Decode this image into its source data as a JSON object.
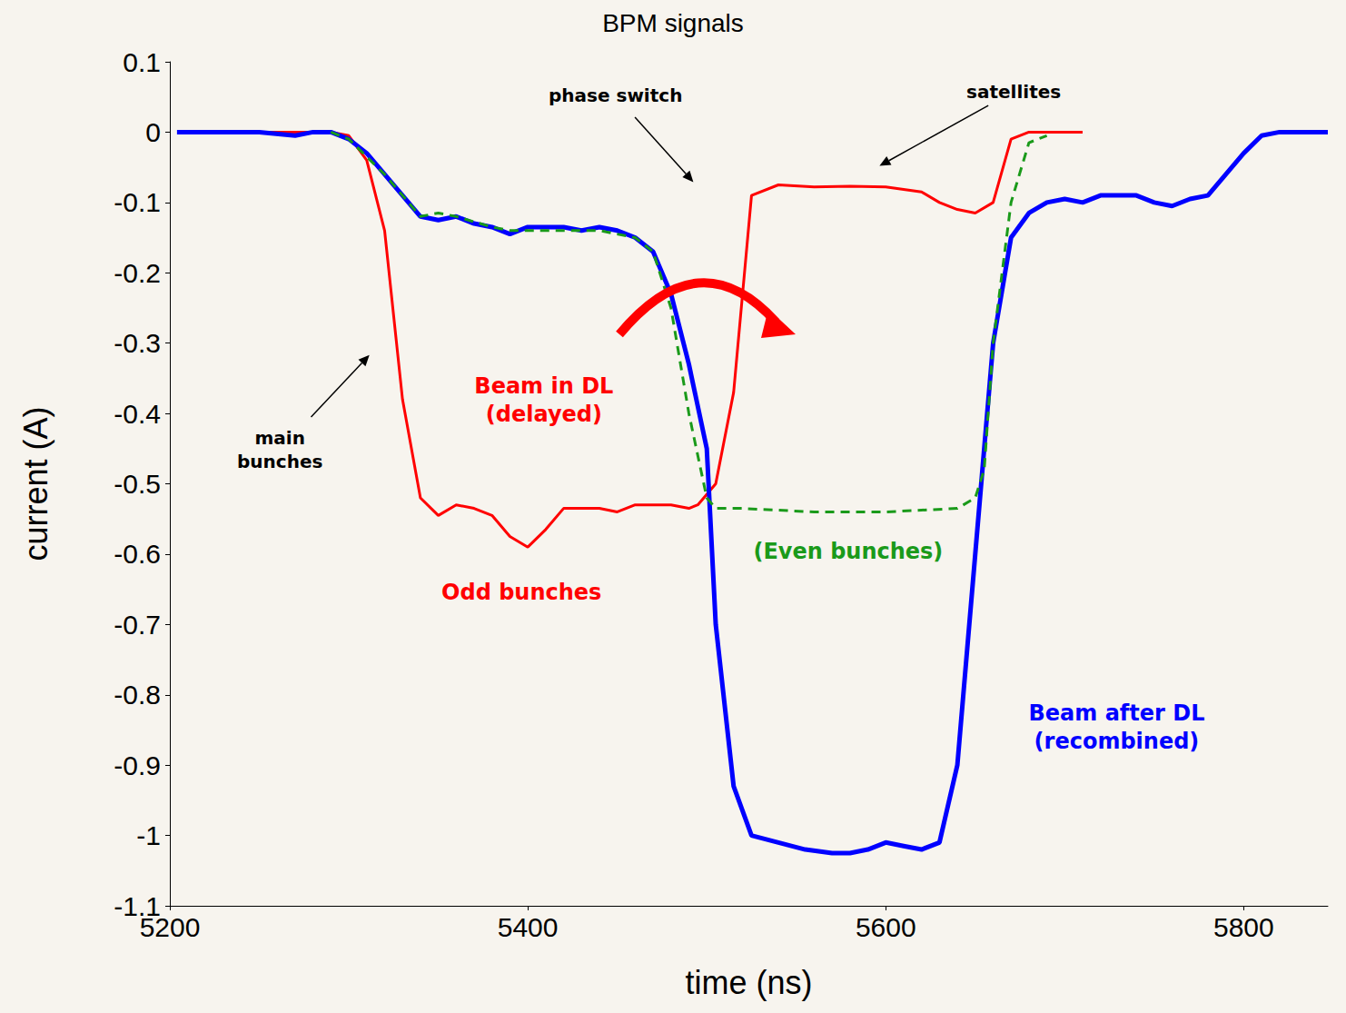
{
  "chart_data": {
    "type": "line",
    "title": "BPM signals",
    "x_label": "time (ns)",
    "y_label": "current (A)",
    "xlim": [
      5200,
      5847
    ],
    "xticks": [
      5200,
      5400,
      5600,
      5800
    ],
    "ylim": [
      -1.1,
      0.1
    ],
    "yticks": [
      -1.1,
      -1,
      -0.9,
      -0.8,
      -0.7,
      -0.6,
      -0.5,
      -0.4,
      -0.3,
      -0.2,
      -0.1,
      0,
      0.1
    ],
    "grid": false,
    "series": [
      {
        "color": "#ff0000",
        "line_style": "solid",
        "x": [
          5235,
          5260,
          5290,
          5300,
          5310,
          5320,
          5330,
          5340,
          5350,
          5360,
          5370,
          5380,
          5390,
          5400,
          5410,
          5420,
          5440,
          5450,
          5460,
          5480,
          5490,
          5495,
          5505,
          5515,
          5525,
          5540,
          5560,
          5580,
          5600,
          5620,
          5630,
          5640,
          5650,
          5660,
          5670,
          5680,
          5710
        ],
        "values": [
          0,
          0,
          0,
          -0.005,
          -0.04,
          -0.14,
          -0.38,
          -0.52,
          -0.545,
          -0.53,
          -0.535,
          -0.545,
          -0.575,
          -0.59,
          -0.565,
          -0.535,
          -0.535,
          -0.54,
          -0.53,
          -0.53,
          -0.535,
          -0.53,
          -0.5,
          -0.37,
          -0.09,
          -0.075,
          -0.078,
          -0.077,
          -0.078,
          -0.085,
          -0.1,
          -0.11,
          -0.115,
          -0.1,
          -0.01,
          0,
          0
        ]
      },
      {
        "color": "#1a9a1a",
        "line_style": "dashed",
        "x": [
          5290,
          5300,
          5320,
          5340,
          5350,
          5360,
          5380,
          5390,
          5400,
          5440,
          5460,
          5470,
          5480,
          5490,
          5500,
          5505,
          5520,
          5560,
          5600,
          5640,
          5650,
          5655,
          5660,
          5670,
          5680,
          5690
        ],
        "values": [
          0,
          -0.01,
          -0.06,
          -0.12,
          -0.115,
          -0.12,
          -0.135,
          -0.14,
          -0.14,
          -0.14,
          -0.15,
          -0.17,
          -0.25,
          -0.4,
          -0.52,
          -0.535,
          -0.535,
          -0.54,
          -0.54,
          -0.535,
          -0.52,
          -0.48,
          -0.3,
          -0.1,
          -0.015,
          -0.005
        ]
      },
      {
        "color": "#0000ff",
        "line_style": "solid",
        "x": [
          5204,
          5250,
          5270,
          5280,
          5290,
          5300,
          5310,
          5320,
          5330,
          5340,
          5350,
          5360,
          5370,
          5380,
          5390,
          5400,
          5410,
          5420,
          5430,
          5440,
          5450,
          5460,
          5470,
          5480,
          5490,
          5500,
          5505,
          5515,
          5525,
          5540,
          5555,
          5570,
          5580,
          5590,
          5600,
          5610,
          5620,
          5630,
          5640,
          5650,
          5660,
          5670,
          5680,
          5690,
          5700,
          5710,
          5720,
          5730,
          5740,
          5750,
          5760,
          5770,
          5780,
          5790,
          5800,
          5810,
          5820,
          5840,
          5847
        ],
        "values": [
          0,
          0,
          -0.005,
          0,
          0,
          -0.01,
          -0.03,
          -0.06,
          -0.09,
          -0.12,
          -0.125,
          -0.12,
          -0.13,
          -0.135,
          -0.145,
          -0.135,
          -0.135,
          -0.135,
          -0.14,
          -0.135,
          -0.14,
          -0.15,
          -0.17,
          -0.23,
          -0.33,
          -0.45,
          -0.7,
          -0.93,
          -1,
          -1.01,
          -1.02,
          -1.025,
          -1.025,
          -1.02,
          -1.01,
          -1.015,
          -1.02,
          -1.01,
          -0.9,
          -0.6,
          -0.3,
          -0.15,
          -0.115,
          -0.1,
          -0.095,
          -0.1,
          -0.09,
          -0.09,
          -0.09,
          -0.1,
          -0.105,
          -0.095,
          -0.09,
          -0.06,
          -0.03,
          -0.005,
          0,
          0,
          0
        ]
      }
    ],
    "annotations": [
      {
        "text": "phase switch",
        "x": 5449,
        "y": 0.052,
        "color": "#000000",
        "arrow_to": [
          5492.5,
          -0.071
        ]
      },
      {
        "text": "satellites",
        "x": 5671.5,
        "y": 0.058,
        "color": "#000000",
        "arrow_to": [
          5596.5,
          -0.048
        ]
      },
      {
        "text": "main\nbunches",
        "x": 5261.5,
        "y": -0.452,
        "color": "#000000",
        "arrow_to": [
          5311.5,
          -0.317
        ]
      },
      {
        "text": "Beam in DL\n(delayed)",
        "x": 5409,
        "y": -0.381,
        "color": "#ff0000"
      },
      {
        "text": "Odd bunches",
        "x": 5396.5,
        "y": -0.655,
        "color": "#ff0000"
      },
      {
        "text": "(Even bunches)",
        "x": 5579,
        "y": -0.596,
        "color": "#1a9a1a"
      },
      {
        "text": "Beam after DL\n(recombined)",
        "x": 5729,
        "y": -0.846,
        "color": "#0000ff"
      }
    ]
  }
}
